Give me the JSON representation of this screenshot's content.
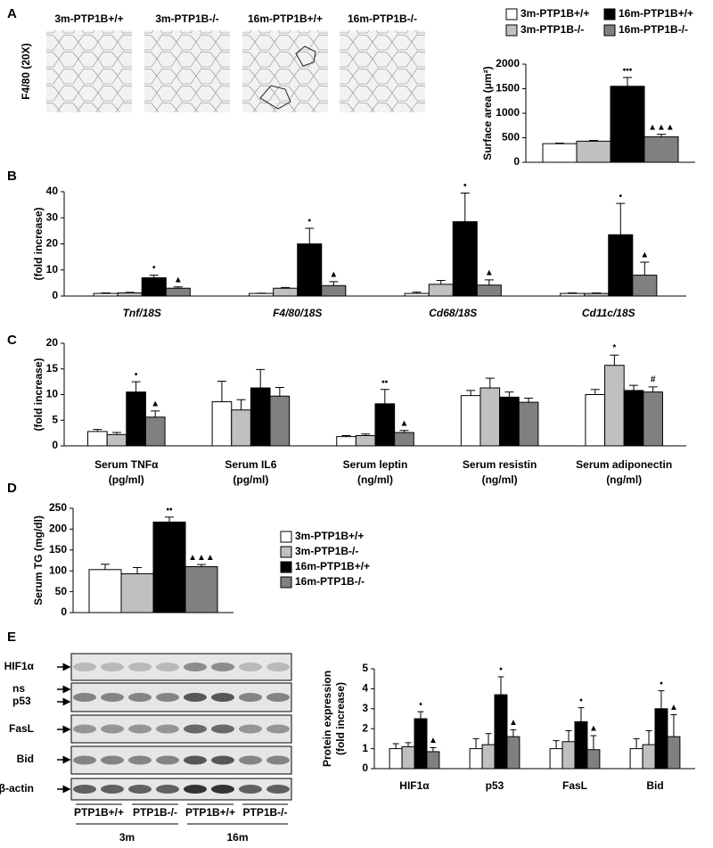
{
  "panel_labels": [
    "A",
    "B",
    "C",
    "D",
    "E"
  ],
  "micrographs": {
    "ylabel": "F4/80 (20X)",
    "labels": [
      "3m-PTP1B+/+",
      "3m-PTP1B-/-",
      "16m-PTP1B+/+",
      "16m-PTP1B-/-"
    ]
  },
  "blot": {
    "rows": [
      "HIF1α",
      "ns",
      "p53",
      "FasL",
      "Bid",
      "β-actin"
    ],
    "genotypes": [
      "PTP1B+/+",
      "PTP1B-/-",
      "PTP1B+/+",
      "PTP1B-/-"
    ],
    "ages": [
      "3m",
      "16m"
    ]
  },
  "chart_data": [
    {
      "type": "bar",
      "ylabel": [
        "Surface area (μm²)"
      ],
      "categories": [
        null
      ],
      "ylim": [
        0,
        2000
      ],
      "yticks": [
        0,
        500,
        1000,
        1500,
        2000
      ],
      "legend": "top",
      "series": [
        {
          "name": "3m-PTP1B+/+",
          "color": "#ffffff",
          "values": [
            380
          ],
          "errors": [
            10
          ],
          "significance": [
            null
          ]
        },
        {
          "name": "3m-PTP1B-/-",
          "color": "#c0c0c0",
          "values": [
            430
          ],
          "errors": [
            15
          ],
          "significance": [
            null
          ]
        },
        {
          "name": "16m-PTP1B+/+",
          "color": "#000000",
          "values": [
            1550
          ],
          "errors": [
            180
          ],
          "significance": [
            "•••"
          ]
        },
        {
          "name": "16m-PTP1B-/-",
          "color": "#808080",
          "values": [
            520
          ],
          "errors": [
            50
          ],
          "significance": [
            "▲▲▲"
          ]
        }
      ]
    },
    {
      "type": "bar",
      "ylabel": [
        "(fold increase)"
      ],
      "categories": [
        "Tnf/18S",
        "F4/80/18S",
        "Cd68/18S",
        "Cd11c/18S"
      ],
      "italic_categories": true,
      "ylim": [
        0,
        40
      ],
      "yticks": [
        0,
        10,
        20,
        30,
        40
      ],
      "series": [
        {
          "color": "#ffffff",
          "values": [
            1,
            1,
            1,
            1
          ],
          "errors": [
            0.2,
            0.1,
            0.5,
            0.2
          ],
          "significance": [
            null,
            null,
            null,
            null
          ]
        },
        {
          "color": "#c0c0c0",
          "values": [
            1.2,
            3,
            4.5,
            1
          ],
          "errors": [
            0.2,
            0.3,
            1.5,
            0.2
          ],
          "significance": [
            null,
            null,
            null,
            null
          ]
        },
        {
          "color": "#000000",
          "values": [
            7,
            20,
            28.5,
            23.5
          ],
          "errors": [
            1,
            6,
            11,
            12
          ],
          "significance": [
            "•",
            "•",
            "•",
            "•"
          ]
        },
        {
          "color": "#808080",
          "values": [
            3,
            4,
            4.2,
            8
          ],
          "errors": [
            0.5,
            1.5,
            2,
            5
          ],
          "significance": [
            "▲",
            "▲",
            "▲",
            "▲"
          ]
        }
      ]
    },
    {
      "type": "bar",
      "ylabel": [
        "(fold increase)"
      ],
      "categories": [
        "Serum TNFα",
        "Serum IL6",
        "Serum leptin",
        "Serum resistin",
        "Serum adiponectin"
      ],
      "category_units": [
        "(pg/ml)",
        "(pg/ml)",
        "(ng/ml)",
        "(ng/ml)",
        "(ng/ml)"
      ],
      "ylim": [
        0,
        20
      ],
      "yticks": [
        0,
        5,
        10,
        15,
        20
      ],
      "series": [
        {
          "color": "#ffffff",
          "values": [
            2.8,
            8.6,
            1.8,
            9.8,
            10
          ],
          "errors": [
            0.4,
            4,
            0.2,
            1,
            1
          ],
          "significance": [
            null,
            null,
            null,
            null,
            null
          ]
        },
        {
          "color": "#c0c0c0",
          "values": [
            2.2,
            7,
            2,
            11.3,
            15.7
          ],
          "errors": [
            0.4,
            2,
            0.3,
            1.9,
            2
          ],
          "significance": [
            null,
            null,
            null,
            null,
            "*"
          ]
        },
        {
          "color": "#000000",
          "values": [
            10.5,
            11.3,
            8.2,
            9.5,
            10.8
          ],
          "errors": [
            2,
            3.6,
            2.8,
            1,
            1
          ],
          "significance": [
            "•",
            null,
            "••",
            null,
            null
          ]
        },
        {
          "color": "#808080",
          "values": [
            5.6,
            9.7,
            2.6,
            8.5,
            10.5
          ],
          "errors": [
            1.2,
            1.7,
            0.4,
            0.8,
            1
          ],
          "significance": [
            "▲",
            null,
            "▲",
            null,
            "#"
          ]
        }
      ]
    },
    {
      "type": "bar",
      "ylabel": [
        "Serum TG (mg/dl)"
      ],
      "categories": [
        null
      ],
      "ylim": [
        0,
        250
      ],
      "yticks": [
        0,
        50,
        100,
        150,
        200,
        250
      ],
      "legend": "right",
      "series": [
        {
          "name": "3m-PTP1B+/+",
          "color": "#ffffff",
          "values": [
            103
          ],
          "errors": [
            13
          ],
          "significance": [
            null
          ]
        },
        {
          "name": "3m-PTP1B-/-",
          "color": "#c0c0c0",
          "values": [
            93
          ],
          "errors": [
            15
          ],
          "significance": [
            null
          ]
        },
        {
          "name": "16m-PTP1B+/+",
          "color": "#000000",
          "values": [
            217
          ],
          "errors": [
            12
          ],
          "significance": [
            "••"
          ]
        },
        {
          "name": "16m-PTP1B-/-",
          "color": "#808080",
          "values": [
            110
          ],
          "errors": [
            5
          ],
          "significance": [
            "▲▲▲"
          ]
        }
      ]
    },
    {
      "type": "bar",
      "ylabel": [
        "Protein expression",
        "(fold increase)"
      ],
      "categories": [
        "HIF1α",
        "p53",
        "FasL",
        "Bid"
      ],
      "ylim": [
        0,
        5
      ],
      "yticks": [
        0,
        1,
        2,
        3,
        4,
        5
      ],
      "series": [
        {
          "color": "#ffffff",
          "values": [
            1,
            1,
            1,
            1
          ],
          "errors": [
            0.25,
            0.5,
            0.4,
            0.5
          ],
          "significance": [
            null,
            null,
            null,
            null
          ]
        },
        {
          "color": "#c0c0c0",
          "values": [
            1.1,
            1.2,
            1.35,
            1.2
          ],
          "errors": [
            0.2,
            0.55,
            0.55,
            0.7
          ],
          "significance": [
            null,
            null,
            null,
            null
          ]
        },
        {
          "color": "#000000",
          "values": [
            2.5,
            3.7,
            2.35,
            3
          ],
          "errors": [
            0.35,
            0.9,
            0.7,
            0.9
          ],
          "significance": [
            "•",
            "•",
            "•",
            "•"
          ]
        },
        {
          "color": "#808080",
          "values": [
            0.85,
            1.6,
            0.95,
            1.6
          ],
          "errors": [
            0.2,
            0.35,
            0.7,
            1.1
          ],
          "significance": [
            "▲",
            "▲",
            "▲",
            "▲"
          ]
        }
      ]
    }
  ]
}
